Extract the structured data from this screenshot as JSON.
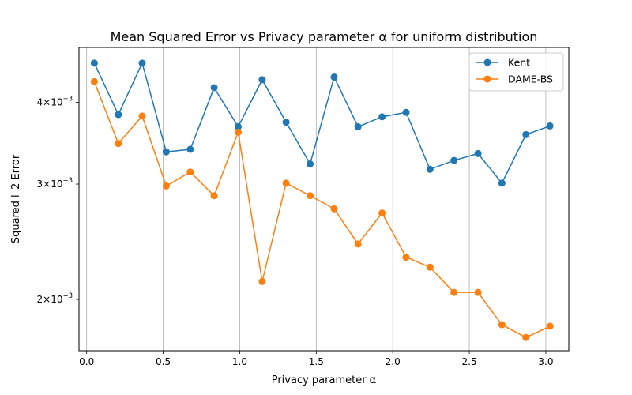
{
  "chart_data": {
    "type": "line",
    "title": "Mean Squared Error vs Privacy parameter α for uniform distribution",
    "xlabel": "Privacy parameter α",
    "ylabel": "Squared l_2 Error",
    "xlim": [
      -0.05,
      3.15
    ],
    "ylim": [
      0.00167,
      0.00485
    ],
    "yscale": "log",
    "grid": "x-only",
    "legend_position": "top-right",
    "x_ticks": [
      {
        "value": 0.0,
        "label": "0.0"
      },
      {
        "value": 0.5,
        "label": "0.5"
      },
      {
        "value": 1.0,
        "label": "1.0"
      },
      {
        "value": 1.5,
        "label": "1.5"
      },
      {
        "value": 2.0,
        "label": "2.0"
      },
      {
        "value": 2.5,
        "label": "2.5"
      },
      {
        "value": 3.0,
        "label": "3.0"
      }
    ],
    "y_ticks": [
      {
        "value": 0.002,
        "mantissa": "2",
        "base": "×10",
        "exponent": "−3"
      },
      {
        "value": 0.003,
        "mantissa": "3",
        "base": "×10",
        "exponent": "−3"
      },
      {
        "value": 0.004,
        "mantissa": "4",
        "base": "×10",
        "exponent": "−3"
      }
    ],
    "x": [
      0.05,
      0.207,
      0.363,
      0.52,
      0.677,
      0.833,
      0.99,
      1.147,
      1.303,
      1.46,
      1.617,
      1.773,
      1.93,
      2.087,
      2.243,
      2.4,
      2.557,
      2.713,
      2.87,
      3.027
    ],
    "series": [
      {
        "name": "Kent",
        "color": "#1f77b4",
        "values": [
          0.00459,
          0.00383,
          0.00459,
          0.00336,
          0.00339,
          0.00421,
          0.00367,
          0.00433,
          0.00373,
          0.00322,
          0.00437,
          0.00367,
          0.0038,
          0.00386,
          0.00316,
          0.00326,
          0.00334,
          0.00301,
          0.00357,
          0.00368
        ]
      },
      {
        "name": "DAME-BS",
        "color": "#ff7f0e",
        "values": [
          0.0043,
          0.00346,
          0.00381,
          0.00298,
          0.00313,
          0.00288,
          0.0036,
          0.00213,
          0.00301,
          0.00288,
          0.00275,
          0.00243,
          0.00271,
          0.00232,
          0.00224,
          0.00205,
          0.00205,
          0.00183,
          0.00175,
          0.00182
        ]
      }
    ]
  }
}
